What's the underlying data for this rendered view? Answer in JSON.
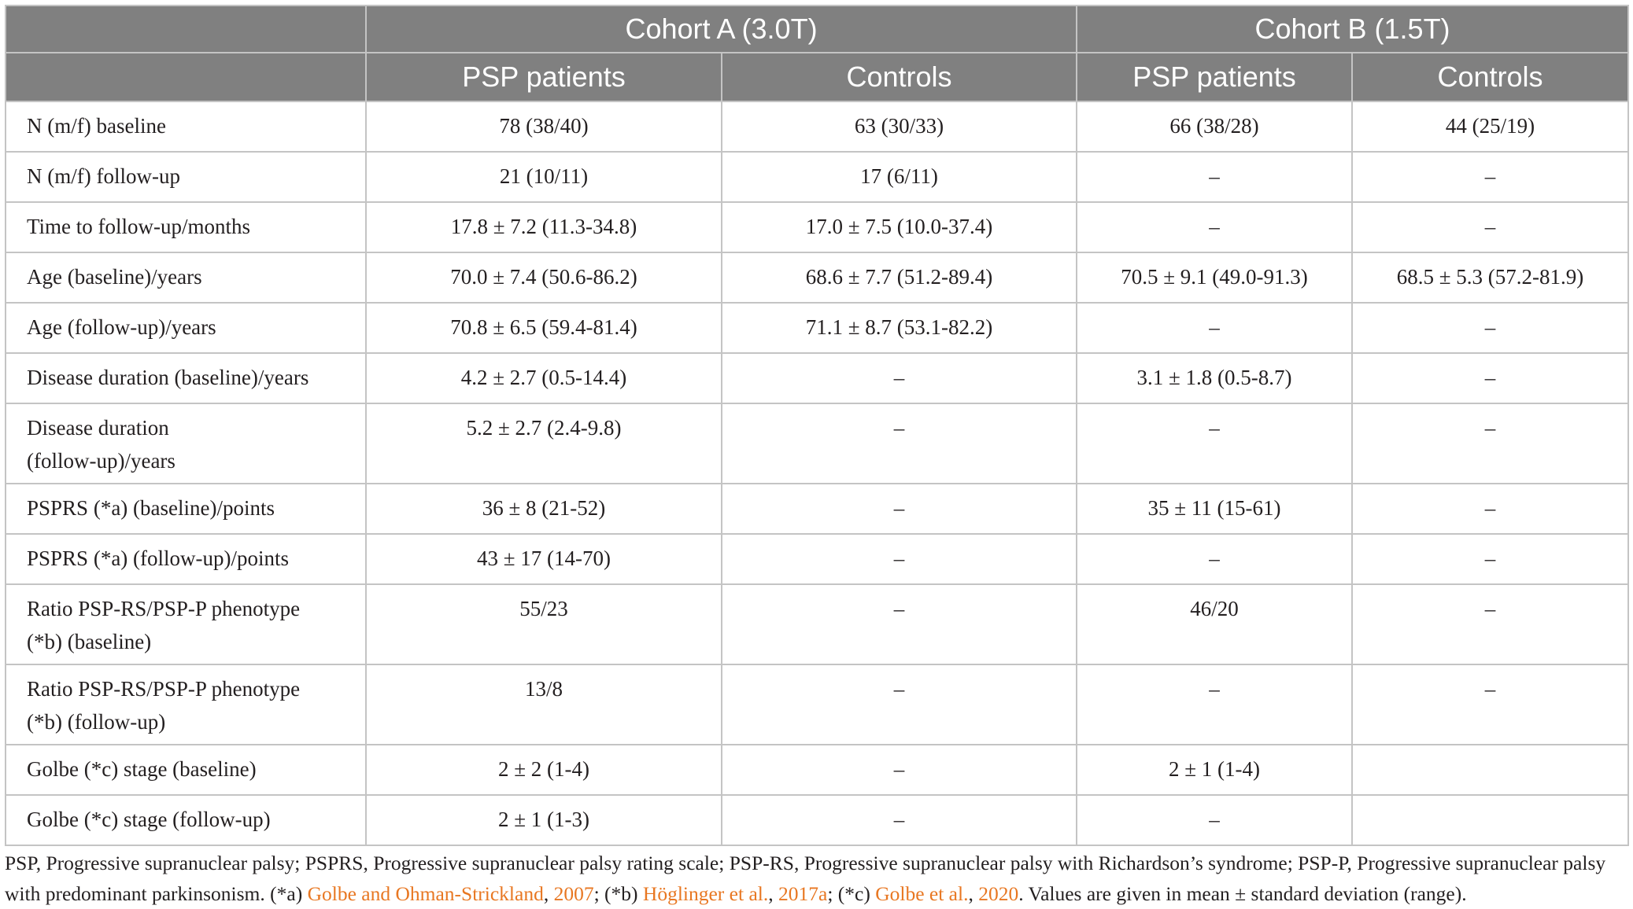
{
  "header": {
    "cohort_a": "Cohort A (3.0T)",
    "cohort_b": "Cohort B (1.5T)",
    "a_patients": "PSP patients",
    "a_controls": "Controls",
    "b_patients": "PSP patients",
    "b_controls": "Controls"
  },
  "rows": [
    {
      "label": "N (m/f) baseline",
      "a_p": "78 (38/40)",
      "a_c": "63 (30/33)",
      "b_p": "66 (38/28)",
      "b_c": "44 (25/19)"
    },
    {
      "label": "N (m/f) follow-up",
      "a_p": "21 (10/11)",
      "a_c": "17 (6/11)",
      "b_p": "–",
      "b_c": "–"
    },
    {
      "label": "Time to follow-up/months",
      "a_p": "17.8 ± 7.2 (11.3-34.8)",
      "a_c": "17.0 ± 7.5 (10.0-37.4)",
      "b_p": "–",
      "b_c": "–"
    },
    {
      "label": "Age (baseline)/years",
      "a_p": "70.0 ± 7.4 (50.6-86.2)",
      "a_c": "68.6 ± 7.7 (51.2-89.4)",
      "b_p": "70.5 ± 9.1 (49.0-91.3)",
      "b_c": "68.5 ± 5.3 (57.2-81.9)"
    },
    {
      "label": "Age (follow-up)/years",
      "a_p": "70.8 ± 6.5 (59.4-81.4)",
      "a_c": "71.1 ± 8.7 (53.1-82.2)",
      "b_p": "–",
      "b_c": "–"
    },
    {
      "label": "Disease duration (baseline)/years",
      "a_p": "4.2 ± 2.7 (0.5-14.4)",
      "a_c": "–",
      "b_p": "3.1 ± 1.8 (0.5-8.7)",
      "b_c": "–"
    },
    {
      "label": "Disease duration",
      "label2": "(follow-up)/years",
      "a_p": "5.2 ± 2.7 (2.4-9.8)",
      "a_c": "–",
      "b_p": "–",
      "b_c": "–"
    },
    {
      "label": "PSPRS (*a) (baseline)/points",
      "a_p": "36 ± 8 (21-52)",
      "a_c": "–",
      "b_p": "35 ± 11 (15-61)",
      "b_c": "–"
    },
    {
      "label": "PSPRS (*a) (follow-up)/points",
      "a_p": "43 ± 17 (14-70)",
      "a_c": "–",
      "b_p": "–",
      "b_c": "–"
    },
    {
      "label": "Ratio PSP-RS/PSP-P phenotype",
      "label2": "(*b) (baseline)",
      "a_p": "55/23",
      "a_c": "–",
      "b_p": "46/20",
      "b_c": "–"
    },
    {
      "label": "Ratio PSP-RS/PSP-P phenotype",
      "label2": "(*b) (follow-up)",
      "a_p": "13/8",
      "a_c": "–",
      "b_p": "–",
      "b_c": "–"
    },
    {
      "label": "Golbe (*c) stage (baseline)",
      "a_p": "2 ± 2 (1-4)",
      "a_c": "–",
      "b_p": "2 ± 1 (1-4)",
      "b_c": ""
    },
    {
      "label": "Golbe (*c) stage (follow-up)",
      "a_p": "2 ± 1 (1-3)",
      "a_c": "–",
      "b_p": "–",
      "b_c": ""
    }
  ],
  "footnote": {
    "text1": "PSP, Progressive supranuclear palsy; PSPRS, Progressive supranuclear palsy rating scale; PSP-RS, Progressive supranuclear palsy with Richardson’s syndrome; PSP-P, Progressive supranuclear palsy with predominant parkinsonism. (*a) ",
    "cite1_name": "Golbe and Ohman-Strickland",
    "sep1": ", ",
    "cite1_year": "2007",
    "text2": "; (*b) ",
    "cite2_name": "Höglinger et al.",
    "sep2": ", ",
    "cite2_year": "2017a",
    "text3": "; (*c) ",
    "cite3_name": "Golbe et al.",
    "sep3": ", ",
    "cite3_year": "2020",
    "text4": ". Values are given in mean ± standard deviation (range)."
  },
  "colors": {
    "header_bg": "#808080",
    "border": "#c4c4c4",
    "citation": "#e87722"
  }
}
